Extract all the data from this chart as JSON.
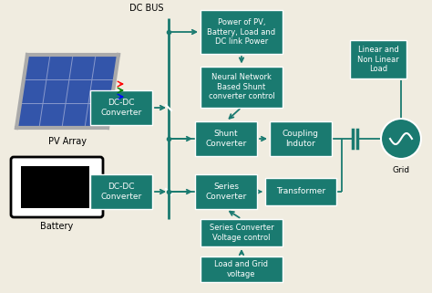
{
  "bg_color": "#f0ece0",
  "box_color": "#1a7a70",
  "box_text_color": "white",
  "line_color": "#1a7a70",
  "dc_bus_label": "DC BUS",
  "pv_label": "PV Array",
  "bat_label": "Battery",
  "grid_label": "Grid",
  "figw": 4.74,
  "figh": 3.21,
  "dpi": 100
}
